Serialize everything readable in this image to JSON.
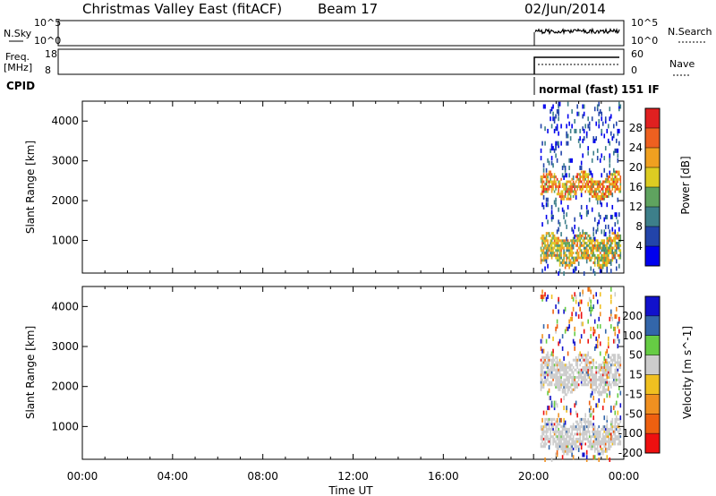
{
  "header": {
    "title": "Christmas Valley East (fitACF)",
    "beam": "Beam 17",
    "date": "02/Jun/2014"
  },
  "nsky": {
    "label": "N.Sky",
    "ticks": [
      "10^5",
      "10^0"
    ],
    "right_label": "N.Search",
    "right_ticks": [
      "10^5",
      "10^0"
    ]
  },
  "freq": {
    "label_line1": "Freq.",
    "label_line2": "[MHz]",
    "ticks": [
      "18",
      "8"
    ],
    "right_label": "Nave",
    "right_ticks": [
      "60",
      "0"
    ]
  },
  "cpid": {
    "label": "CPID",
    "mode_text": "normal (fast)",
    "mode_id": "151",
    "mode_suffix": "IF"
  },
  "colors": {
    "power": [
      "#0000ee",
      "#2244aa",
      "#3d7f8a",
      "#5fa35f",
      "#ddcc22",
      "#f0a020",
      "#ee6020",
      "#e02020"
    ],
    "velocity": [
      "#ee1010",
      "#ee6010",
      "#f09020",
      "#f0c020",
      "#cccccc",
      "#66cc44",
      "#3366aa",
      "#1111cc"
    ]
  },
  "chart_data": [
    {
      "type": "heatmap",
      "name": "power-panel",
      "ylabel": "Slant Range [km]",
      "yticks": [
        "4000",
        "3000",
        "2000",
        "1000"
      ],
      "ytick_values": [
        4000,
        3000,
        2000,
        1000
      ],
      "ylim": [
        180,
        4500
      ],
      "xlim_hours": [
        0,
        24
      ],
      "data_start_hour": 20.3,
      "colorbar_label": "Power [dB]",
      "colorbar_ticks": [
        "28",
        "24",
        "20",
        "16",
        "12",
        "8",
        "4"
      ],
      "colorbar_range": [
        0,
        32
      ],
      "bands": [
        {
          "range_km": [
            2100,
            2600
          ],
          "level": 22
        },
        {
          "range_km": [
            400,
            1100
          ],
          "level": 18
        }
      ]
    },
    {
      "type": "heatmap",
      "name": "velocity-panel",
      "ylabel": "Slant Range [km]",
      "yticks": [
        "4000",
        "3000",
        "2000",
        "1000"
      ],
      "ytick_values": [
        4000,
        3000,
        2000,
        1000
      ],
      "ylim": [
        180,
        4500
      ],
      "xlim_hours": [
        0,
        24
      ],
      "data_start_hour": 20.3,
      "colorbar_label": "Velocity [m s^-1]",
      "colorbar_ticks": [
        "200",
        "100",
        "50",
        "15",
        "-15",
        "-50",
        "-100",
        "-200"
      ],
      "bands": [
        {
          "range_km": [
            1900,
            2700
          ],
          "velocity": 0
        },
        {
          "range_km": [
            400,
            1100
          ],
          "velocity": 0
        }
      ]
    }
  ],
  "xaxis": {
    "label": "Time UT",
    "ticks": [
      "00:00",
      "04:00",
      "08:00",
      "12:00",
      "16:00",
      "20:00",
      "00:00"
    ]
  }
}
